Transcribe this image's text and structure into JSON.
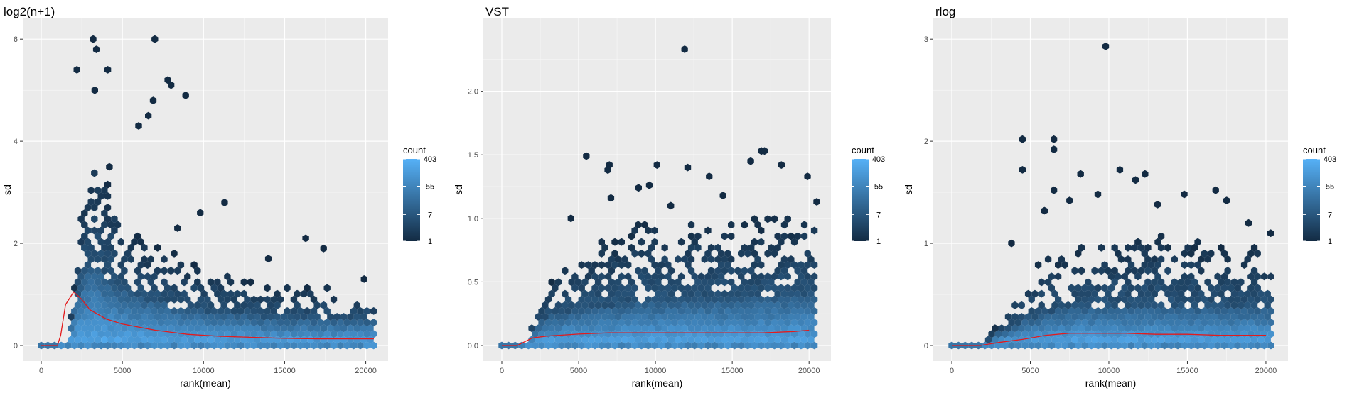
{
  "chart_data": [
    {
      "type": "hexbin",
      "title": "log2(n+1)",
      "xlabel": "rank(mean)",
      "ylabel": "sd",
      "xlim": [
        0,
        20500
      ],
      "ylim": [
        0,
        6.1
      ],
      "x_ticks": [
        0,
        5000,
        10000,
        15000,
        20000
      ],
      "x_tick_labels": [
        "0",
        "5000",
        "10000",
        "15000",
        "20000"
      ],
      "y_ticks": [
        0,
        2,
        4,
        6
      ],
      "y_tick_labels": [
        "0",
        "2",
        "4",
        "6"
      ],
      "grid": true,
      "legend": {
        "title": "count",
        "position": "right",
        "labels": [
          "403",
          "55",
          "7",
          "1"
        ],
        "values": [
          403,
          55,
          7,
          1
        ],
        "scale": "log"
      },
      "colors": {
        "low": "#132b43",
        "high": "#56b1f7",
        "trend": "#e31a1c",
        "panel_bg": "#ebebeb",
        "grid": "#ffffff"
      },
      "trend_line": {
        "x": [
          0,
          1000,
          1200,
          1500,
          2000,
          2500,
          3000,
          4000,
          5000,
          7000,
          9000,
          11000,
          13000,
          15000,
          17000,
          19000,
          20500
        ],
        "y": [
          0,
          0,
          0.2,
          0.8,
          1.05,
          0.9,
          0.7,
          0.52,
          0.42,
          0.3,
          0.22,
          0.18,
          0.16,
          0.14,
          0.13,
          0.13,
          0.13
        ]
      },
      "outliers": [
        [
          3200,
          6.0
        ],
        [
          7000,
          6.0
        ],
        [
          3400,
          5.8
        ],
        [
          4100,
          5.4
        ],
        [
          7800,
          5.2
        ],
        [
          8000,
          5.1
        ],
        [
          8900,
          4.9
        ],
        [
          3300,
          5.0
        ],
        [
          2200,
          5.4
        ],
        [
          6900,
          4.8
        ],
        [
          6000,
          4.3
        ],
        [
          6600,
          4.5
        ],
        [
          8400,
          2.3
        ],
        [
          9800,
          2.6
        ],
        [
          11300,
          2.8
        ],
        [
          4200,
          3.5
        ],
        [
          16300,
          2.1
        ],
        [
          17400,
          1.9
        ],
        [
          14000,
          1.7
        ],
        [
          19900,
          1.3
        ]
      ],
      "bins": {
        "start": 1000,
        "end": 20500,
        "step": 500,
        "dense_top": [
          0,
          0,
          0.7,
          1.3,
          1.6,
          1.5,
          1.3,
          1.15,
          1.05,
          1.0,
          0.95,
          0.9,
          0.85,
          0.8,
          0.78,
          0.75,
          0.72,
          0.7,
          0.68,
          0.66,
          0.64,
          0.62,
          0.6,
          0.6,
          0.58,
          0.56,
          0.55,
          0.55,
          0.54,
          0.53,
          0.52,
          0.52,
          0.51,
          0.5,
          0.5,
          0.5,
          0.5,
          0.5,
          0.5,
          0.5
        ],
        "scatter_top": [
          0,
          0,
          1.0,
          2.8,
          3.6,
          3.8,
          3.4,
          3.0,
          2.6,
          2.4,
          2.3,
          2.1,
          2.0,
          1.9,
          1.85,
          1.8,
          1.7,
          1.6,
          1.5,
          1.5,
          1.45,
          1.4,
          1.4,
          1.35,
          1.3,
          1.3,
          1.3,
          1.25,
          1.25,
          1.2,
          1.2,
          1.2,
          1.2,
          1.15,
          1.15,
          1.1,
          1.1,
          1.1,
          1.1,
          1.0
        ]
      }
    },
    {
      "type": "hexbin",
      "title": "VST",
      "xlabel": "rank(mean)",
      "ylabel": "sd",
      "xlim": [
        0,
        20500
      ],
      "ylim": [
        0,
        2.45
      ],
      "x_ticks": [
        0,
        5000,
        10000,
        15000,
        20000
      ],
      "x_tick_labels": [
        "0",
        "5000",
        "10000",
        "15000",
        "20000"
      ],
      "y_ticks": [
        0,
        0.5,
        1.0,
        1.5,
        2.0
      ],
      "y_tick_labels": [
        "0.0",
        "0.5",
        "1.0",
        "1.5",
        "2.0"
      ],
      "grid": true,
      "legend": {
        "title": "count",
        "position": "right",
        "labels": [
          "403",
          "55",
          "7",
          "1"
        ],
        "values": [
          403,
          55,
          7,
          1
        ],
        "scale": "log"
      },
      "colors": {
        "low": "#132b43",
        "high": "#56b1f7",
        "trend": "#e31a1c",
        "panel_bg": "#ebebeb",
        "grid": "#ffffff"
      },
      "trend_line": {
        "x": [
          0,
          1000,
          1500,
          2000,
          3000,
          5000,
          7000,
          9000,
          11000,
          13000,
          15000,
          17000,
          19000,
          20000
        ],
        "y": [
          0,
          0,
          0.03,
          0.06,
          0.075,
          0.09,
          0.1,
          0.1,
          0.1,
          0.1,
          0.1,
          0.1,
          0.11,
          0.12
        ]
      },
      "outliers": [
        [
          11900,
          2.33
        ],
        [
          5500,
          1.49
        ],
        [
          7000,
          1.42
        ],
        [
          6900,
          1.38
        ],
        [
          10100,
          1.42
        ],
        [
          16200,
          1.45
        ],
        [
          16900,
          1.53
        ],
        [
          17100,
          1.53
        ],
        [
          18200,
          1.42
        ],
        [
          13500,
          1.33
        ],
        [
          19900,
          1.33
        ],
        [
          9600,
          1.26
        ],
        [
          7100,
          1.16
        ],
        [
          8900,
          1.24
        ],
        [
          11000,
          1.1
        ],
        [
          14400,
          1.18
        ],
        [
          4500,
          1.0
        ],
        [
          20500,
          1.13
        ],
        [
          12100,
          1.4
        ]
      ],
      "bins": {
        "start": 1000,
        "end": 20500,
        "step": 500,
        "dense_top": [
          0,
          0,
          0.12,
          0.18,
          0.22,
          0.24,
          0.26,
          0.27,
          0.28,
          0.29,
          0.3,
          0.3,
          0.31,
          0.31,
          0.32,
          0.32,
          0.33,
          0.33,
          0.33,
          0.34,
          0.34,
          0.34,
          0.35,
          0.35,
          0.35,
          0.35,
          0.36,
          0.36,
          0.36,
          0.36,
          0.37,
          0.37,
          0.37,
          0.37,
          0.37,
          0.38,
          0.38,
          0.38,
          0.38,
          0.38
        ],
        "scatter_top": [
          0,
          0,
          0.2,
          0.4,
          0.5,
          0.55,
          0.6,
          0.65,
          0.7,
          0.75,
          0.8,
          0.85,
          0.85,
          0.9,
          0.9,
          0.95,
          0.95,
          1.0,
          1.0,
          1.0,
          1.0,
          1.0,
          1.0,
          1.0,
          1.0,
          1.0,
          1.0,
          1.0,
          1.0,
          1.0,
          1.0,
          1.0,
          1.0,
          1.0,
          1.0,
          1.0,
          1.0,
          1.0,
          1.0,
          1.0
        ]
      }
    },
    {
      "type": "hexbin",
      "title": "rlog",
      "xlabel": "rank(mean)",
      "ylabel": "sd",
      "xlim": [
        0,
        20500
      ],
      "ylim": [
        0,
        3.05
      ],
      "x_ticks": [
        0,
        5000,
        10000,
        15000,
        20000
      ],
      "x_tick_labels": [
        "0",
        "5000",
        "10000",
        "15000",
        "20000"
      ],
      "y_ticks": [
        0,
        1,
        2,
        3
      ],
      "y_tick_labels": [
        "0",
        "1",
        "2",
        "3"
      ],
      "grid": true,
      "legend": {
        "title": "count",
        "position": "right",
        "labels": [
          "403",
          "55",
          "7",
          "1"
        ],
        "values": [
          403,
          55,
          7,
          1
        ],
        "scale": "log"
      },
      "colors": {
        "low": "#132b43",
        "high": "#56b1f7",
        "trend": "#e31a1c",
        "panel_bg": "#ebebeb",
        "grid": "#ffffff"
      },
      "trend_line": {
        "x": [
          0,
          1800,
          3000,
          4500,
          6000,
          7500,
          9000,
          11000,
          13000,
          15000,
          17000,
          19000,
          20000
        ],
        "y": [
          0,
          0,
          0.03,
          0.06,
          0.1,
          0.12,
          0.12,
          0.12,
          0.11,
          0.11,
          0.1,
          0.1,
          0.1
        ]
      },
      "outliers": [
        [
          9800,
          2.93
        ],
        [
          4500,
          2.02
        ],
        [
          6500,
          2.02
        ],
        [
          6500,
          1.92
        ],
        [
          4500,
          1.72
        ],
        [
          10700,
          1.72
        ],
        [
          11700,
          1.62
        ],
        [
          12300,
          1.68
        ],
        [
          8200,
          1.68
        ],
        [
          9300,
          1.48
        ],
        [
          6500,
          1.52
        ],
        [
          5900,
          1.32
        ],
        [
          13100,
          1.38
        ],
        [
          14800,
          1.48
        ],
        [
          16800,
          1.52
        ],
        [
          17500,
          1.42
        ],
        [
          7500,
          1.42
        ],
        [
          3800,
          1.0
        ],
        [
          18900,
          1.2
        ],
        [
          20300,
          1.1
        ]
      ],
      "bins": {
        "start": 1800,
        "end": 20500,
        "step": 500,
        "dense_top": [
          0,
          0.05,
          0.1,
          0.14,
          0.18,
          0.22,
          0.25,
          0.28,
          0.3,
          0.32,
          0.34,
          0.35,
          0.36,
          0.37,
          0.38,
          0.38,
          0.38,
          0.38,
          0.38,
          0.38,
          0.38,
          0.38,
          0.38,
          0.38,
          0.38,
          0.38,
          0.37,
          0.37,
          0.37,
          0.37,
          0.37,
          0.37,
          0.36,
          0.36,
          0.36,
          0.36,
          0.36,
          0.36
        ],
        "scatter_top": [
          0,
          0.1,
          0.2,
          0.35,
          0.5,
          0.6,
          0.7,
          0.8,
          0.85,
          0.9,
          0.9,
          0.95,
          1.0,
          1.0,
          1.0,
          1.05,
          1.05,
          1.1,
          1.1,
          1.1,
          1.1,
          1.1,
          1.1,
          1.1,
          1.1,
          1.05,
          1.05,
          1.05,
          1.0,
          1.0,
          1.0,
          1.0,
          1.0,
          1.0,
          1.0,
          1.0,
          1.0,
          1.0
        ]
      }
    }
  ]
}
